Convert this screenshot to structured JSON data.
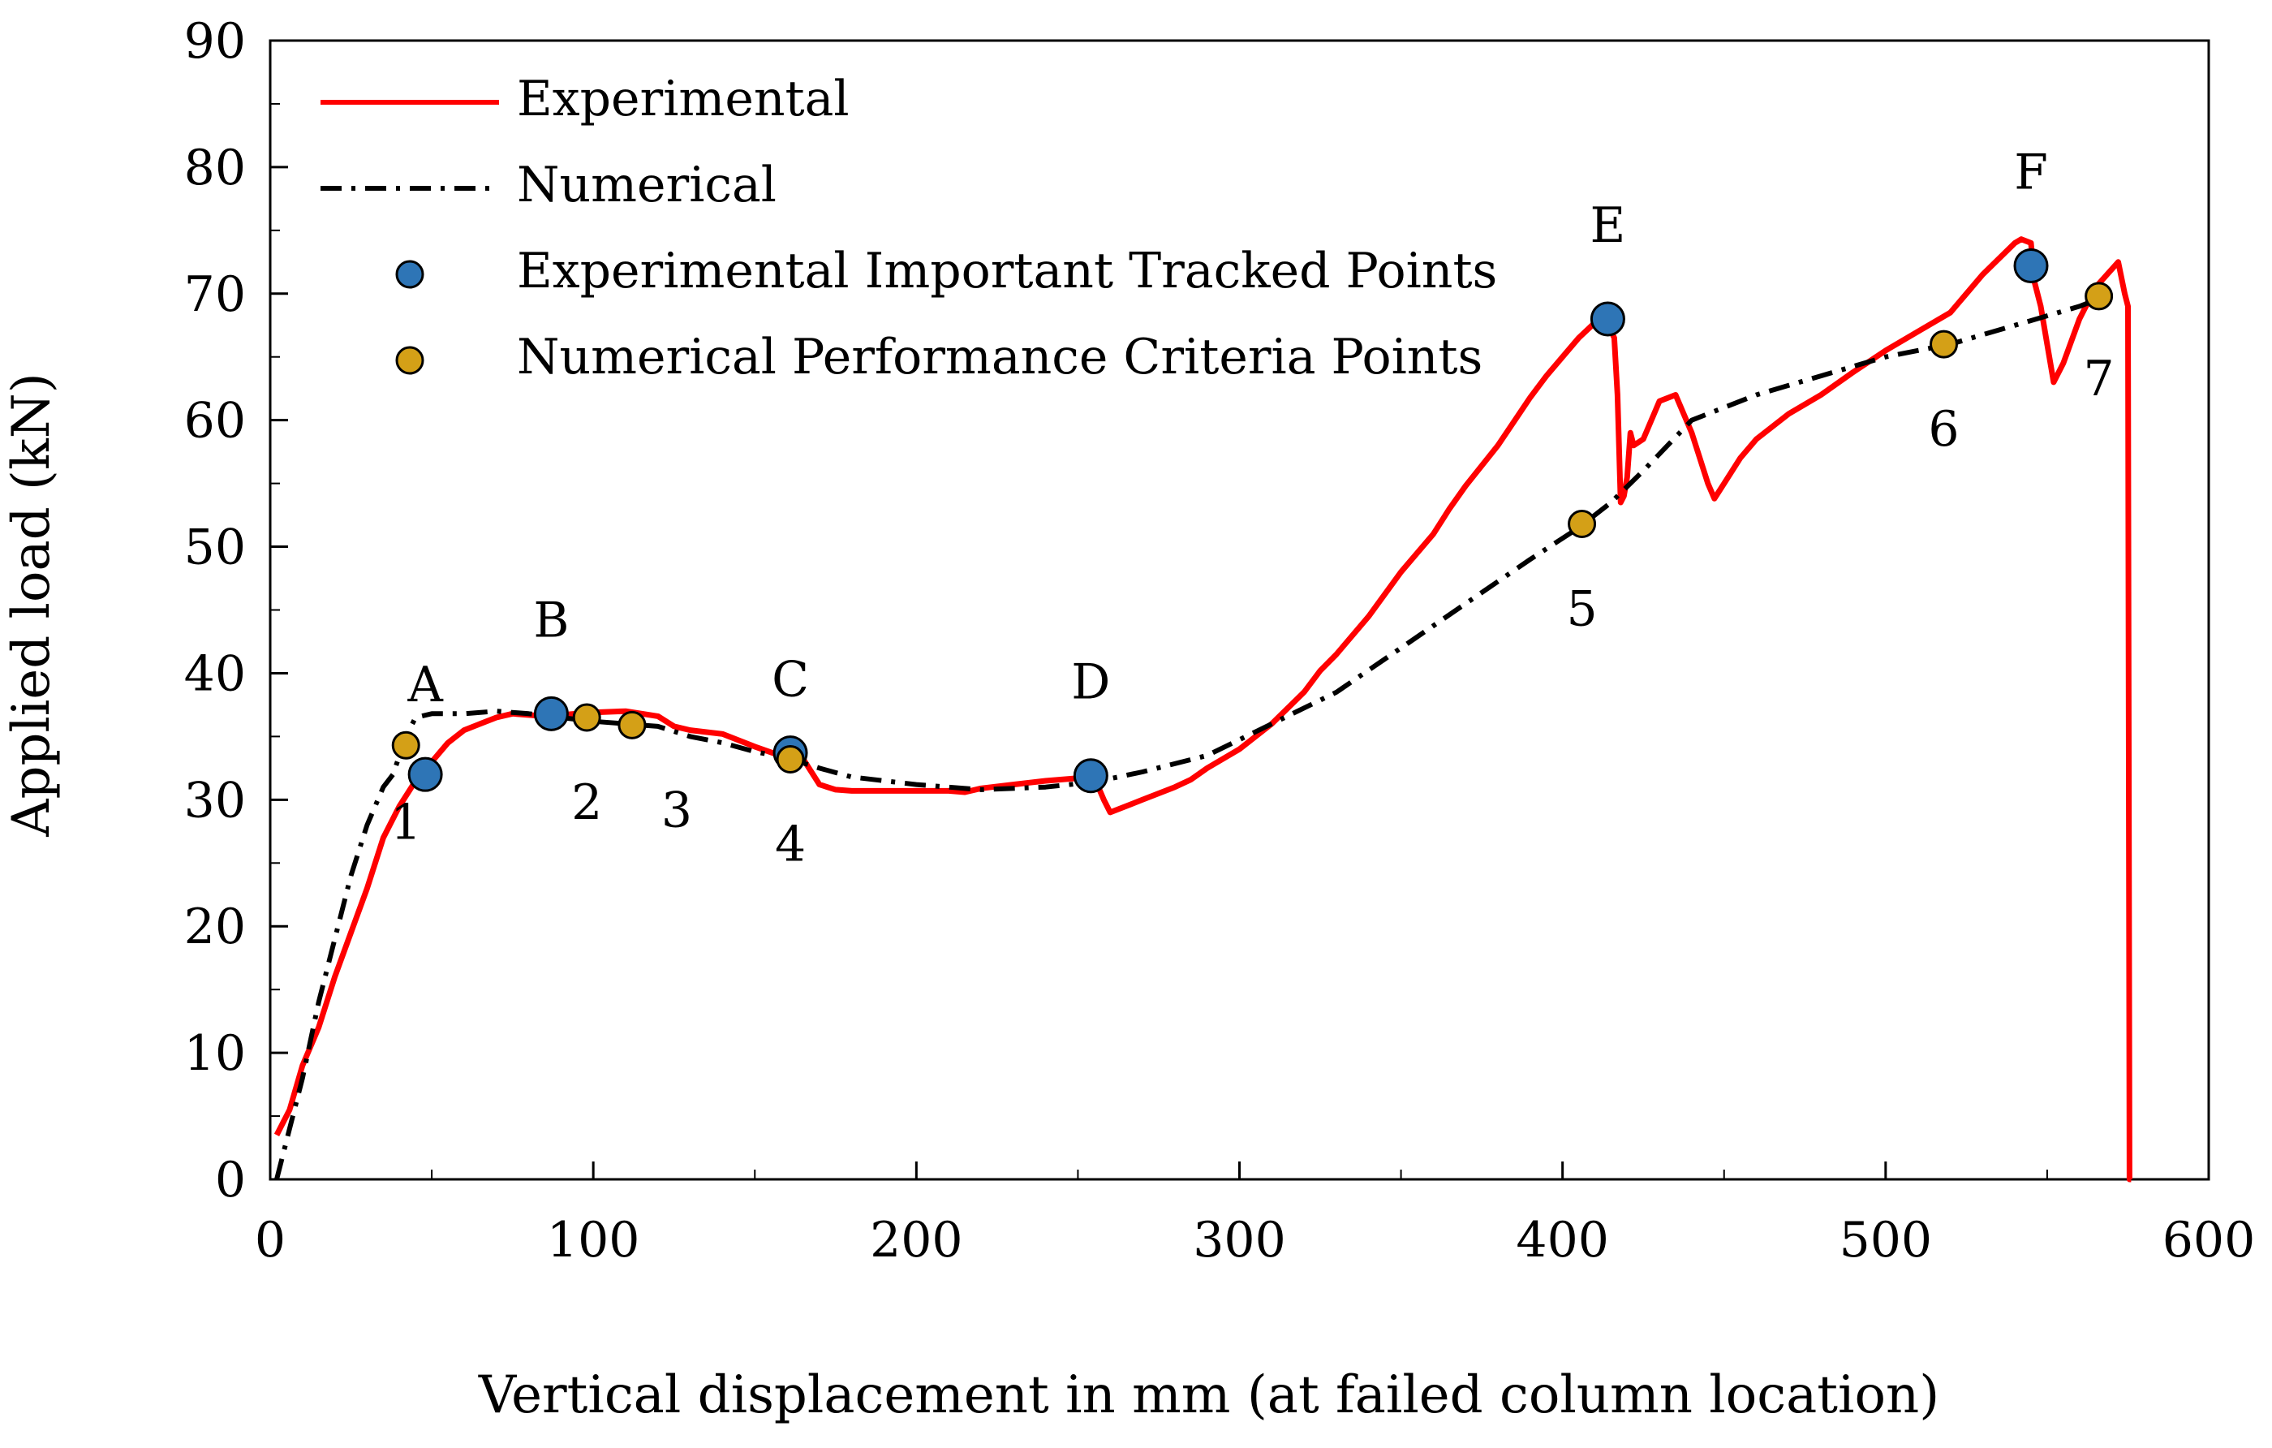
{
  "chart_data": {
    "type": "line",
    "xlabel": "Vertical displacement in mm (at failed column location)",
    "ylabel": "Applied load (kN)",
    "xlim": [
      0,
      600
    ],
    "ylim": [
      0,
      90
    ],
    "xticks": [
      "0",
      "100",
      "200",
      "300",
      "400",
      "500",
      "600"
    ],
    "yticks": [
      "0",
      "10",
      "20",
      "30",
      "40",
      "50",
      "60",
      "70",
      "80",
      "90"
    ],
    "grid": false,
    "legend_position": "top-left",
    "series": [
      {
        "name": "Experimental",
        "style": "solid",
        "color": "#ff0000",
        "x": [
          2,
          6,
          10,
          15,
          20,
          25,
          30,
          35,
          40,
          45,
          50,
          55,
          60,
          65,
          70,
          75,
          80,
          85,
          90,
          95,
          100,
          110,
          120,
          125,
          130,
          140,
          150,
          160,
          165,
          170,
          175,
          180,
          190,
          200,
          210,
          215,
          220,
          230,
          240,
          250,
          255,
          258,
          260,
          270,
          280,
          285,
          290,
          300,
          310,
          320,
          325,
          330,
          340,
          350,
          360,
          365,
          370,
          380,
          390,
          395,
          400,
          405,
          410,
          413,
          416,
          417,
          418,
          419,
          420,
          421,
          422,
          425,
          430,
          435,
          440,
          445,
          447,
          450,
          455,
          460,
          470,
          480,
          490,
          500,
          510,
          520,
          525,
          530,
          540,
          542,
          545,
          546,
          548,
          550,
          552,
          555,
          560,
          565,
          572,
          574,
          575,
          575.5,
          576
        ],
        "y": [
          3.5,
          5.5,
          9,
          12,
          16,
          19.5,
          23,
          27,
          29.5,
          31.5,
          33,
          34.5,
          35.5,
          36,
          36.5,
          36.8,
          36.7,
          36.6,
          36.7,
          36.8,
          36.9,
          37,
          36.6,
          35.8,
          35.5,
          35.2,
          34.2,
          33.3,
          33.2,
          31.2,
          30.8,
          30.7,
          30.7,
          30.7,
          30.7,
          30.6,
          30.9,
          31.2,
          31.5,
          31.7,
          31.8,
          30,
          29,
          30,
          31,
          31.6,
          32.5,
          34,
          36,
          38.5,
          40.2,
          41.5,
          44.5,
          48,
          51,
          53,
          54.8,
          58,
          61.8,
          63.5,
          65,
          66.5,
          67.7,
          68.2,
          66.5,
          62,
          53.5,
          54,
          55.5,
          59,
          58,
          58.5,
          61.5,
          62,
          59,
          55,
          53.8,
          55,
          57,
          58.5,
          60.5,
          62,
          63.8,
          65.5,
          67,
          68.5,
          70,
          71.5,
          74,
          74.3,
          74,
          71,
          69,
          66,
          63,
          64.5,
          68,
          70.5,
          72.5,
          70,
          69,
          0,
          0
        ]
      },
      {
        "name": "Numerical",
        "style": "dashdot",
        "color": "#000000",
        "x": [
          2,
          5,
          10,
          15,
          20,
          25,
          30,
          35,
          38,
          40,
          42,
          45,
          50,
          60,
          70,
          80,
          90,
          100,
          110,
          120,
          130,
          140,
          150,
          160,
          170,
          180,
          200,
          220,
          240,
          255,
          270,
          290,
          310,
          330,
          350,
          370,
          390,
          405,
          415,
          425,
          440,
          460,
          480,
          500,
          520,
          540,
          560,
          570
        ],
        "y": [
          0,
          3,
          8,
          14,
          19,
          24,
          28,
          31,
          32,
          33.5,
          35,
          36.5,
          36.8,
          36.8,
          37,
          36.8,
          36.5,
          36.2,
          36,
          35.8,
          35,
          34.5,
          33.8,
          33.3,
          32.5,
          31.8,
          31.2,
          30.8,
          31,
          31.4,
          32.2,
          33.5,
          36,
          38.5,
          42,
          45.5,
          49,
          51.5,
          53.5,
          56,
          60,
          62,
          63.5,
          65,
          66,
          67.5,
          69,
          70
        ]
      }
    ],
    "tracked_points": {
      "name": "Experimental Important Tracked Points",
      "color": "#2e75b6",
      "points": [
        {
          "label": "A",
          "x": 48,
          "y": 32
        },
        {
          "label": "B",
          "x": 87,
          "y": 36.8
        },
        {
          "label": "C",
          "x": 161,
          "y": 33.7
        },
        {
          "label": "D",
          "x": 254,
          "y": 31.9
        },
        {
          "label": "E",
          "x": 414,
          "y": 68
        },
        {
          "label": "F",
          "x": 545,
          "y": 72.2
        }
      ]
    },
    "criteria_points": {
      "name": "Numerical Performance Criteria Points",
      "color": "#d4a017",
      "points": [
        {
          "label": "1",
          "x": 42,
          "y": 34.3
        },
        {
          "label": "2",
          "x": 98,
          "y": 36.5
        },
        {
          "label": "3",
          "x": 112,
          "y": 35.9
        },
        {
          "label": "4",
          "x": 161,
          "y": 33.2
        },
        {
          "label": "5",
          "x": 406,
          "y": 51.8
        },
        {
          "label": "6",
          "x": 518,
          "y": 66
        },
        {
          "label": "7",
          "x": 566,
          "y": 69.8
        }
      ]
    }
  }
}
